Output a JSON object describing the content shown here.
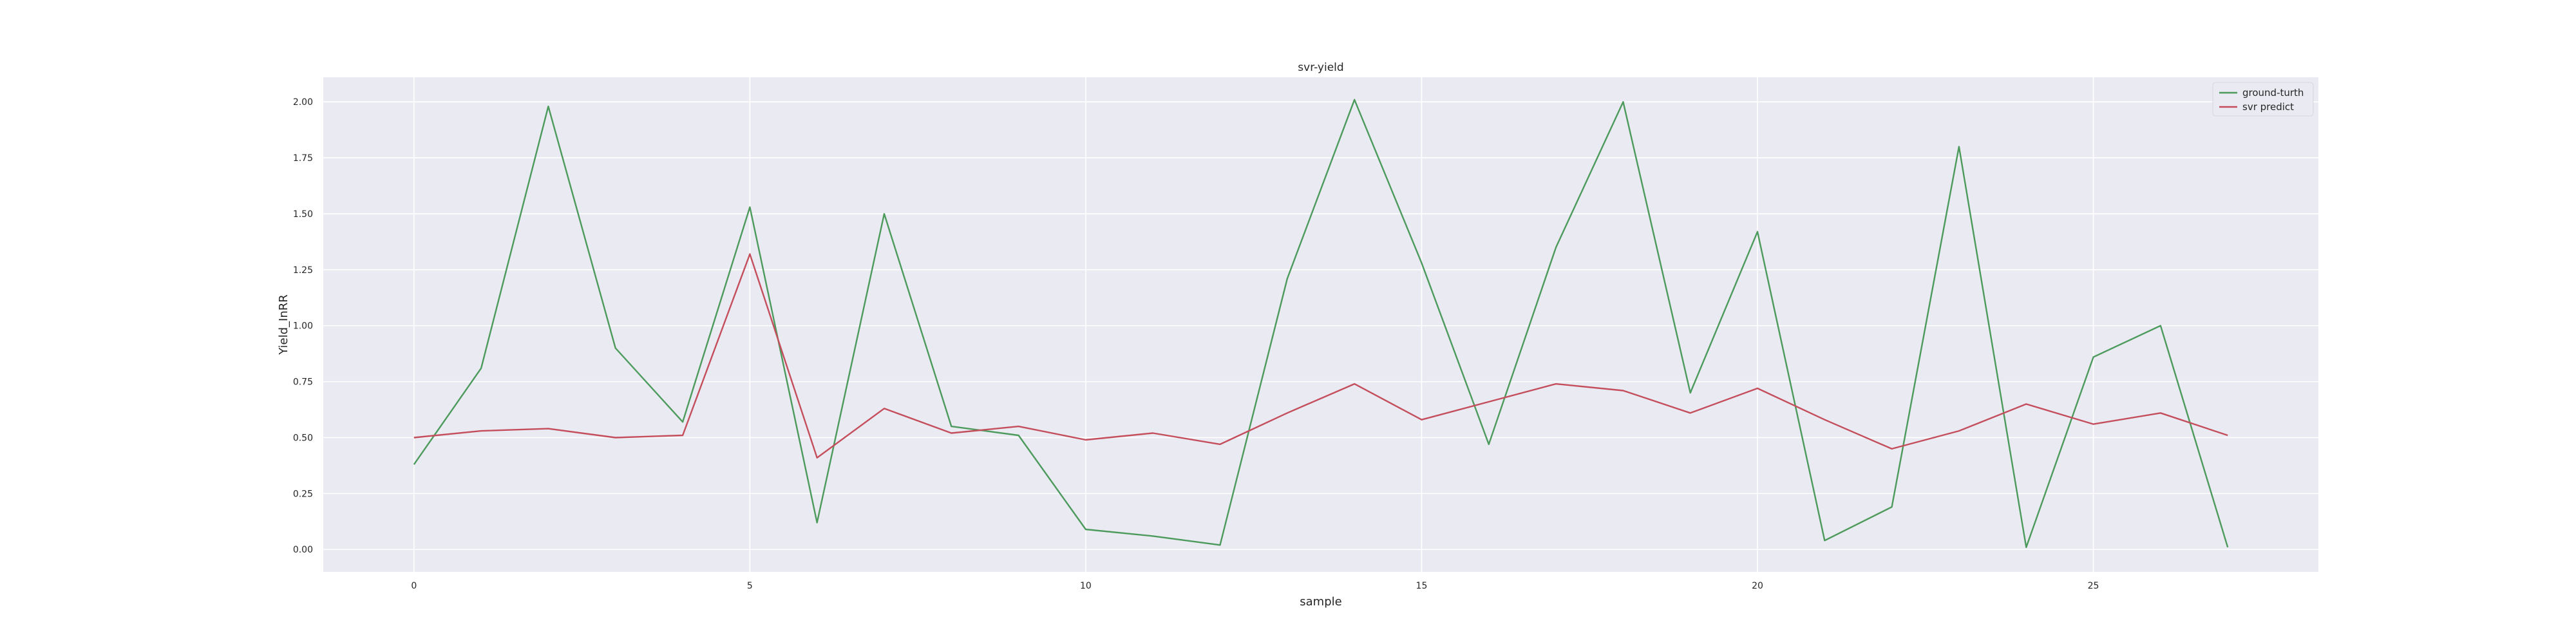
{
  "chart_data": {
    "type": "line",
    "title": "svr-yield",
    "xlabel": "sample",
    "ylabel": "Yield_InRR",
    "xlim": [
      -1.35,
      28.35
    ],
    "ylim": [
      -0.1,
      2.11
    ],
    "xticks": [
      0,
      5,
      10,
      15,
      20,
      25
    ],
    "yticks": [
      0.0,
      0.25,
      0.5,
      0.75,
      1.0,
      1.25,
      1.5,
      1.75,
      2.0
    ],
    "ytick_labels": [
      "0.00",
      "0.25",
      "0.50",
      "0.75",
      "1.00",
      "1.25",
      "1.50",
      "1.75",
      "2.00"
    ],
    "grid": true,
    "legend_position": "top-right",
    "x": [
      0,
      1,
      2,
      3,
      4,
      5,
      6,
      7,
      8,
      9,
      10,
      11,
      12,
      13,
      14,
      15,
      16,
      17,
      18,
      19,
      20,
      21,
      22,
      23,
      24,
      25,
      26,
      27
    ],
    "series": [
      {
        "name": "ground-turth",
        "color": "#4c9a5c",
        "values": [
          0.38,
          0.81,
          1.98,
          0.9,
          0.57,
          1.53,
          0.12,
          1.5,
          0.55,
          0.51,
          0.09,
          0.06,
          0.02,
          1.21,
          2.01,
          1.28,
          0.47,
          1.35,
          2.0,
          0.7,
          1.42,
          0.04,
          0.19,
          1.8,
          0.01,
          0.86,
          1.0,
          0.01
        ]
      },
      {
        "name": "svr predict",
        "color": "#c44e5c",
        "values": [
          0.5,
          0.53,
          0.54,
          0.5,
          0.51,
          1.32,
          0.41,
          0.63,
          0.52,
          0.55,
          0.49,
          0.52,
          0.47,
          0.61,
          0.74,
          0.58,
          0.66,
          0.74,
          0.71,
          0.61,
          0.72,
          0.58,
          0.45,
          0.53,
          0.65,
          0.56,
          0.61,
          0.51
        ]
      }
    ]
  }
}
